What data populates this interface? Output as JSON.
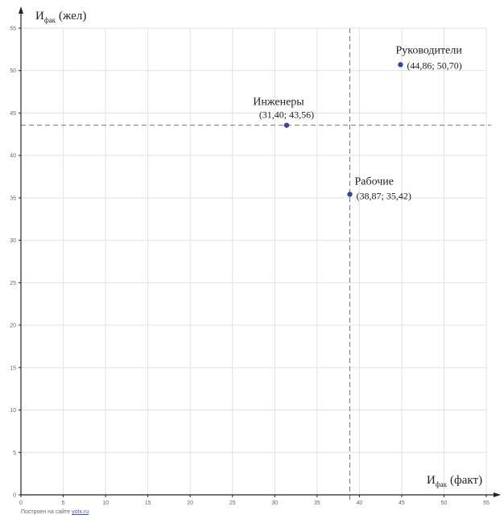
{
  "chart_data": {
    "type": "scatter",
    "xlabel": {
      "main": "И",
      "sub": "фак",
      "suffix": "(факт)"
    },
    "ylabel": {
      "main": "И",
      "sub": "фак",
      "suffix": "(жел)"
    },
    "xlim": [
      0,
      55
    ],
    "ylim": [
      0,
      55
    ],
    "x_ticks": [
      0,
      5,
      10,
      15,
      20,
      25,
      30,
      35,
      40,
      45,
      50,
      55
    ],
    "y_ticks": [
      0,
      5,
      10,
      15,
      20,
      25,
      30,
      35,
      40,
      45,
      50,
      55
    ],
    "grid": true,
    "reference_lines": {
      "x": 38.87,
      "y": 43.56
    },
    "point_color": "#3344aa",
    "points": [
      {
        "name": "Руководители",
        "x": 44.86,
        "y": 50.7,
        "label": "(44,86; 50,70)"
      },
      {
        "name": "Инженеры",
        "x": 31.4,
        "y": 43.56,
        "label": "(31,40; 43,56)"
      },
      {
        "name": "Рабочие",
        "x": 38.87,
        "y": 35.42,
        "label": "(38,87; 35,42)"
      }
    ]
  },
  "credit": {
    "prefix": "Построен на сайте",
    "link": "yotx.ru"
  }
}
